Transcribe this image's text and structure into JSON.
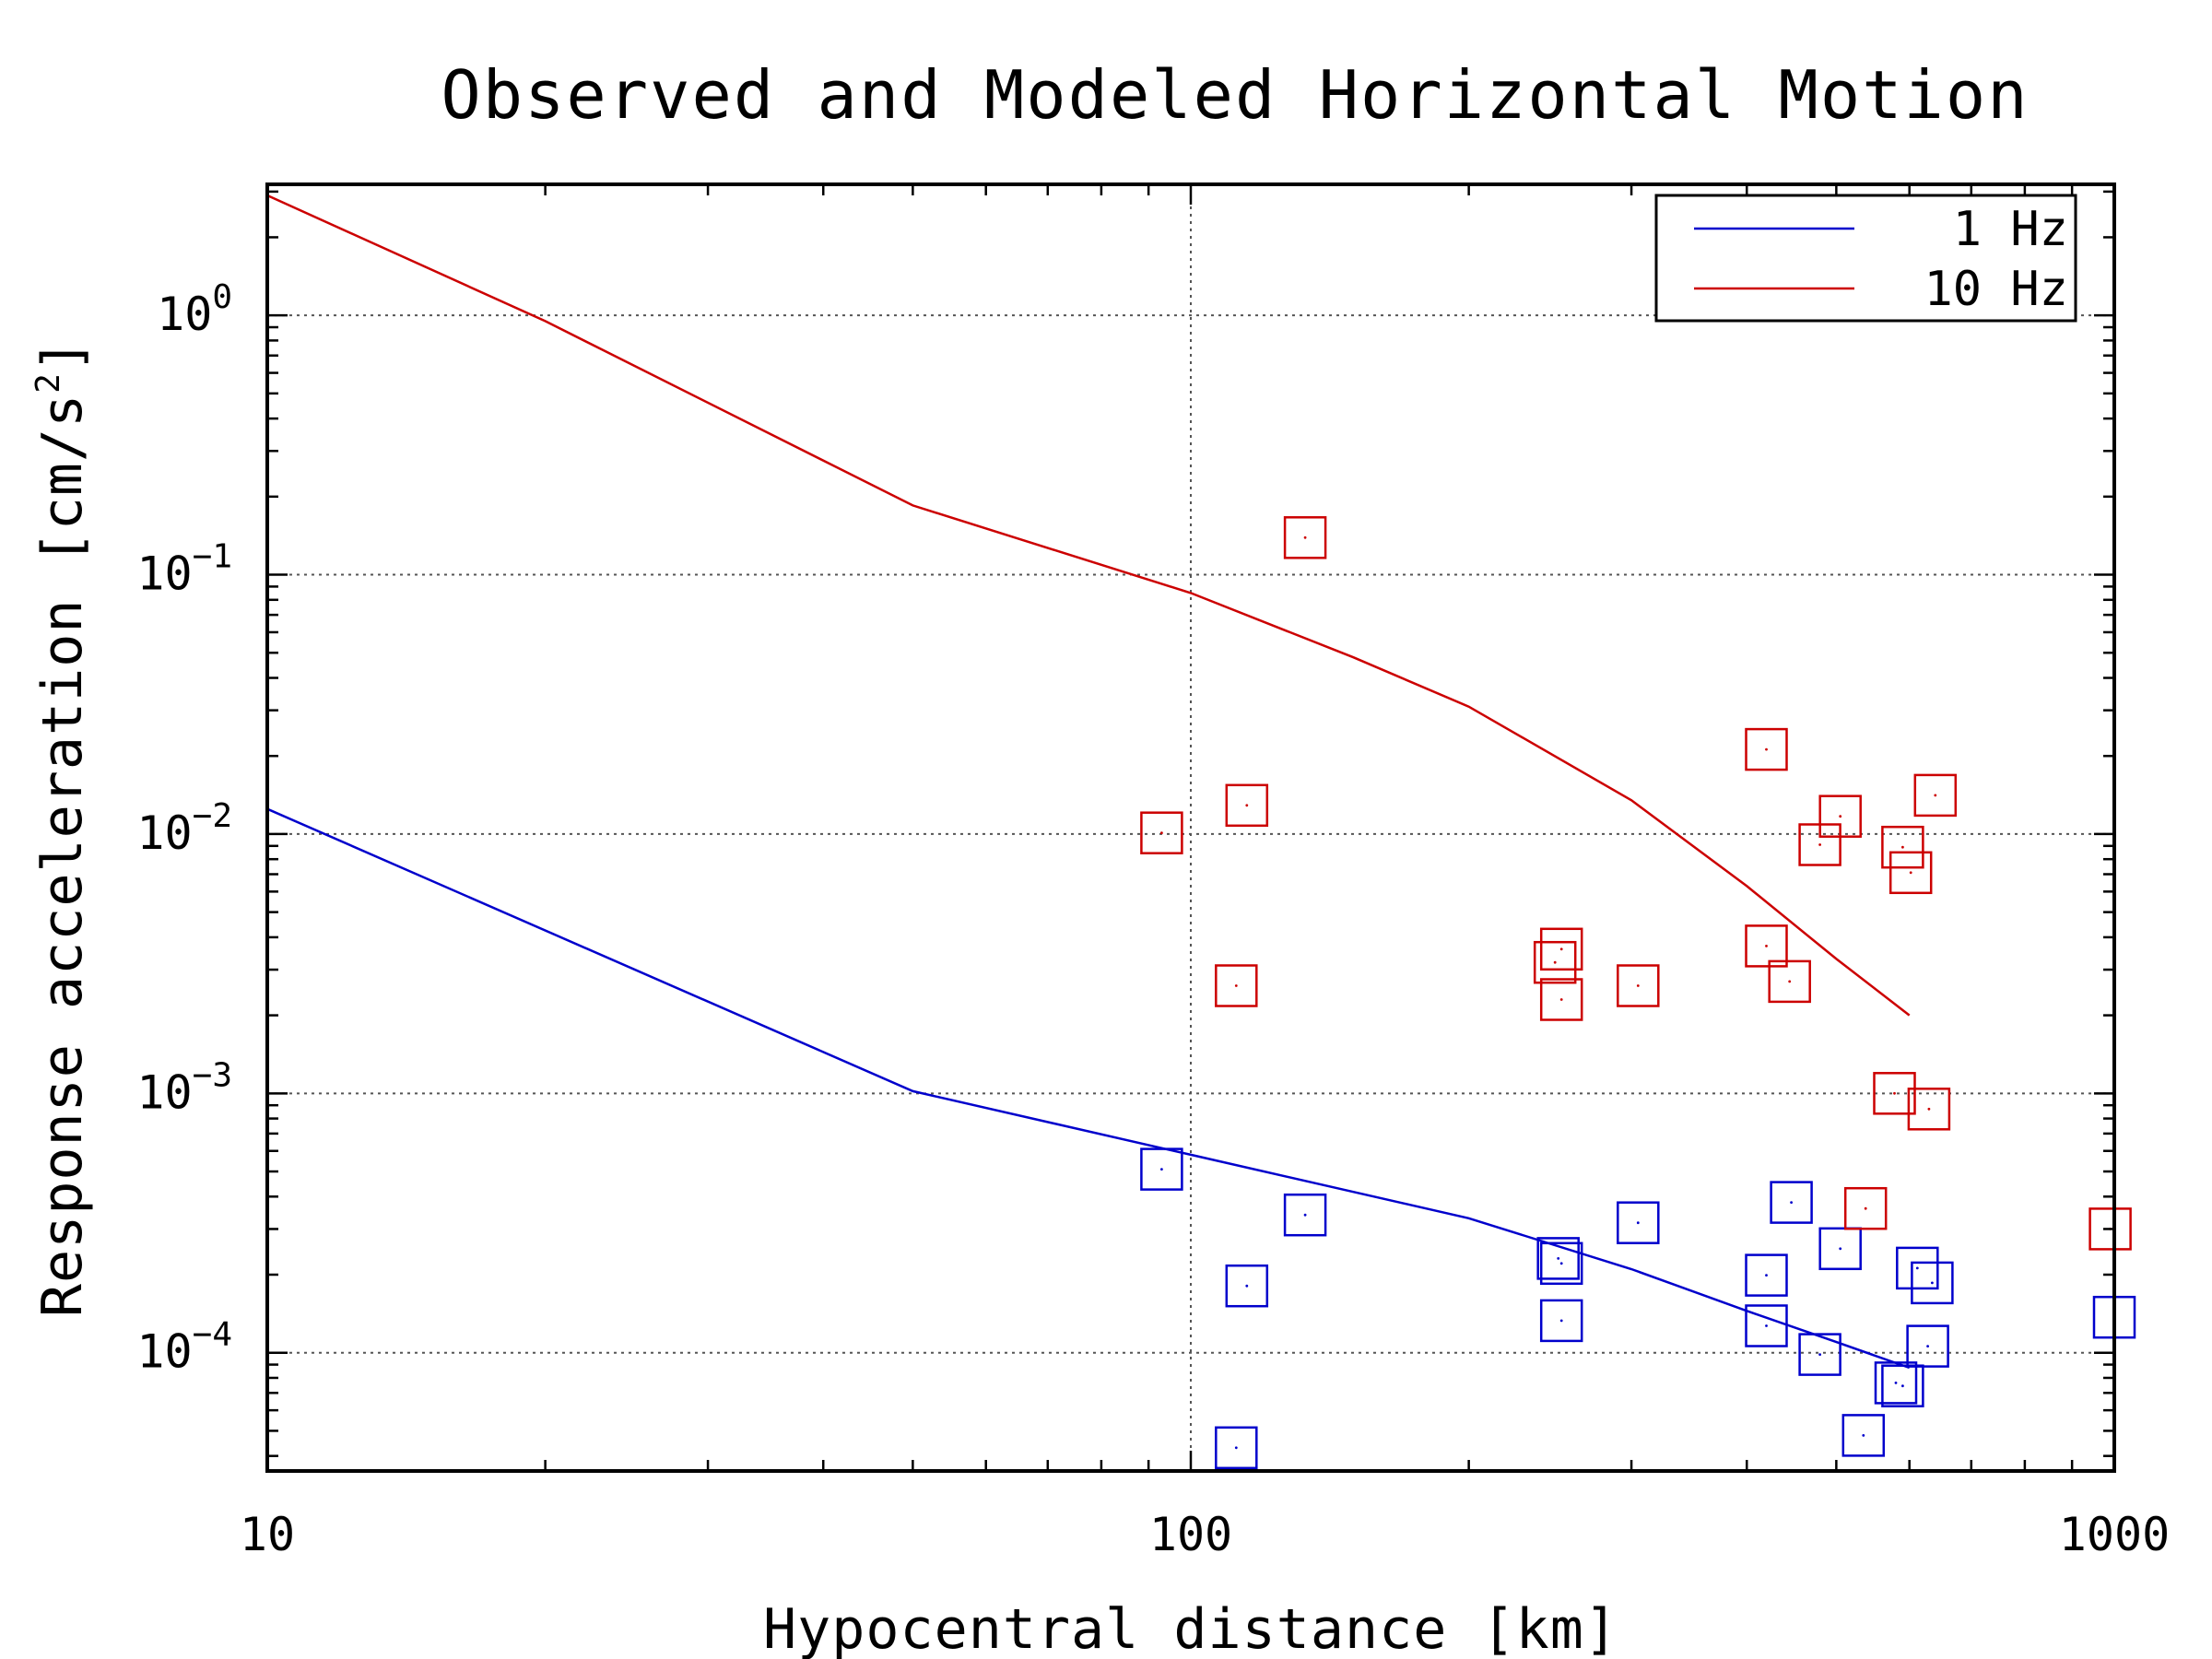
{
  "chart_data": {
    "type": "scatter",
    "title": "Observed and Modeled Horizontal Motion",
    "xlabel": "Hypocentral distance [km]",
    "ylabel": "Response acceleration [cm/s",
    "ylabel_sup": "2",
    "ylabel_end": "]",
    "x_scale": "log",
    "y_scale": "log",
    "xlim": [
      10,
      1000
    ],
    "ylim": [
      3.5e-05,
      3.2
    ],
    "grid": true,
    "legend_position": "top-right",
    "x_ticks": [
      {
        "value": 10,
        "label": "10"
      },
      {
        "value": 100,
        "label": "100"
      },
      {
        "value": 1000,
        "label": "1000"
      }
    ],
    "y_ticks": [
      {
        "value": 1,
        "base": "10",
        "exp": "0"
      },
      {
        "value": 0.1,
        "base": "10",
        "exp": "−1"
      },
      {
        "value": 0.01,
        "base": "10",
        "exp": "−2"
      },
      {
        "value": 0.001,
        "base": "10",
        "exp": "−3"
      },
      {
        "value": 0.0001,
        "base": "10",
        "exp": "−4"
      }
    ],
    "series": [
      {
        "name": "1 Hz",
        "color": "#0000cc",
        "model_line": [
          [
            10,
            0.0125
          ],
          [
            50,
            0.00102
          ],
          [
            100,
            0.00058
          ],
          [
            200,
            0.00033
          ],
          [
            300,
            0.00021
          ],
          [
            400,
            0.000145
          ],
          [
            500,
            0.00011
          ],
          [
            600,
            8.75e-05
          ]
        ],
        "observed": [
          [
            93,
            0.00051
          ],
          [
            112,
            4.3e-05
          ],
          [
            115,
            0.000181
          ],
          [
            133,
            0.00034
          ],
          [
            250,
            0.000231
          ],
          [
            252,
            0.000221
          ],
          [
            252,
            0.000133
          ],
          [
            305,
            0.000317
          ],
          [
            420,
            0.000199
          ],
          [
            420,
            0.000127
          ],
          [
            447,
            0.00038
          ],
          [
            480,
            9.85e-05
          ],
          [
            505,
            0.000252
          ],
          [
            535,
            4.8e-05
          ],
          [
            580,
            7.65e-05
          ],
          [
            590,
            7.45e-05
          ],
          [
            612,
            0.000212
          ],
          [
            628,
            0.000106
          ],
          [
            635,
            0.000186
          ],
          [
            1000,
            0.000137
          ]
        ]
      },
      {
        "name": "10 Hz",
        "color": "#cc0000",
        "model_line": [
          [
            10,
            2.9
          ],
          [
            20,
            0.95
          ],
          [
            50,
            0.185
          ],
          [
            100,
            0.085
          ],
          [
            150,
            0.048
          ],
          [
            200,
            0.031
          ],
          [
            300,
            0.0135
          ],
          [
            400,
            0.0063
          ],
          [
            500,
            0.0033
          ],
          [
            600,
            0.002
          ]
        ],
        "observed": [
          [
            93,
            0.0101
          ],
          [
            112,
            0.0026
          ],
          [
            115,
            0.0129
          ],
          [
            133,
            0.139
          ],
          [
            248,
            0.0032
          ],
          [
            252,
            0.0036
          ],
          [
            252,
            0.0023
          ],
          [
            305,
            0.0026
          ],
          [
            420,
            0.0212
          ],
          [
            420,
            0.0037
          ],
          [
            445,
            0.0027
          ],
          [
            480,
            0.0091
          ],
          [
            505,
            0.0117
          ],
          [
            538,
            0.00036
          ],
          [
            578,
            0.001
          ],
          [
            590,
            0.0089
          ],
          [
            602,
            0.0071
          ],
          [
            630,
            0.00087
          ],
          [
            640,
            0.0141
          ],
          [
            990,
            0.0003
          ]
        ]
      }
    ]
  }
}
